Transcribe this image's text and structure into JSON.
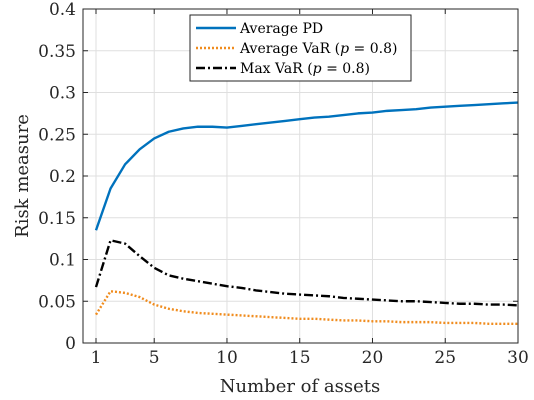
{
  "chart_data": {
    "type": "line",
    "xlabel": "Number of assets",
    "ylabel": "Risk measure",
    "xlim": [
      0,
      30
    ],
    "ylim": [
      0,
      0.4
    ],
    "xticks": [
      1,
      5,
      10,
      15,
      20,
      25,
      30
    ],
    "yticks": [
      0,
      0.05,
      0.1,
      0.15,
      0.2,
      0.25,
      0.3,
      0.35,
      0.4
    ],
    "xtick_labels": [
      "1",
      "5",
      "10",
      "15",
      "20",
      "25",
      "30"
    ],
    "ytick_labels": [
      "0",
      "0.05",
      "0.1",
      "0.15",
      "0.2",
      "0.25",
      "0.3",
      "0.35",
      "0.4"
    ],
    "grid": true,
    "legend_position": "top-center",
    "x": [
      1,
      2,
      3,
      4,
      5,
      6,
      7,
      8,
      9,
      10,
      11,
      12,
      13,
      14,
      15,
      16,
      17,
      18,
      19,
      20,
      21,
      22,
      23,
      24,
      25,
      26,
      27,
      28,
      29,
      30
    ],
    "series": [
      {
        "name": "Average PD",
        "color": "#0072BD",
        "style": "solid",
        "values": [
          0.135,
          0.185,
          0.214,
          0.232,
          0.245,
          0.253,
          0.257,
          0.259,
          0.259,
          0.258,
          0.26,
          0.262,
          0.264,
          0.266,
          0.268,
          0.27,
          0.271,
          0.273,
          0.275,
          0.276,
          0.278,
          0.279,
          0.28,
          0.282,
          0.283,
          0.284,
          0.285,
          0.286,
          0.287,
          0.288
        ]
      },
      {
        "name": "Average VaR (p = 0.8)",
        "color": "#F08C1E",
        "style": "dotted",
        "values": [
          0.034,
          0.062,
          0.06,
          0.055,
          0.046,
          0.041,
          0.038,
          0.036,
          0.035,
          0.034,
          0.033,
          0.032,
          0.031,
          0.03,
          0.029,
          0.029,
          0.028,
          0.027,
          0.027,
          0.026,
          0.026,
          0.025,
          0.025,
          0.025,
          0.024,
          0.024,
          0.024,
          0.023,
          0.023,
          0.023
        ]
      },
      {
        "name": "Max VaR (p = 0.8)",
        "color": "#000000",
        "style": "dashdot",
        "values": [
          0.067,
          0.123,
          0.119,
          0.104,
          0.09,
          0.081,
          0.077,
          0.074,
          0.071,
          0.068,
          0.066,
          0.063,
          0.061,
          0.059,
          0.058,
          0.057,
          0.056,
          0.054,
          0.053,
          0.052,
          0.051,
          0.05,
          0.05,
          0.049,
          0.048,
          0.047,
          0.047,
          0.046,
          0.046,
          0.045
        ]
      }
    ],
    "legend": [
      {
        "prefix": "Average PD",
        "var": "",
        "suffix": ""
      },
      {
        "prefix": "Average VaR (",
        "var": "p",
        "suffix": " = 0.8)"
      },
      {
        "prefix": "Max VaR (",
        "var": "p",
        "suffix": " = 0.8)"
      }
    ]
  }
}
